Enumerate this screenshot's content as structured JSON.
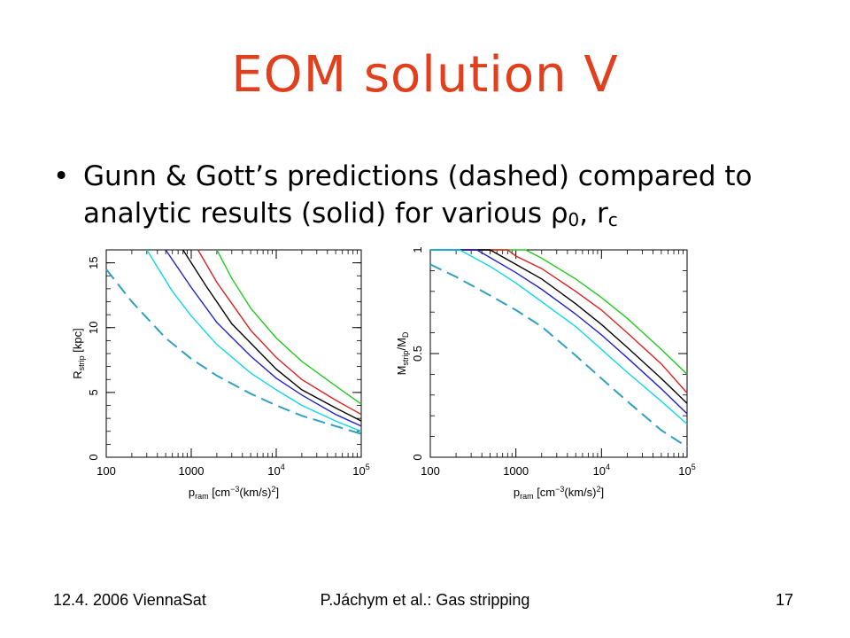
{
  "title": "EOM solution V",
  "bullet": {
    "text_main": "Gunn & Gott’s predictions (dashed) compared to analytic results (solid) for various ",
    "rho": "ρ",
    "rho_sub": "0",
    "separator": ", ",
    "r": "r",
    "r_sub": "c"
  },
  "footer": {
    "left": "12.4. 2006 ViennaSat",
    "center": "P.Jáchym et al.: Gas stripping",
    "right": "17"
  },
  "colors": {
    "title": "#e0401e",
    "green": "#22cc22",
    "red": "#e02020",
    "black": "#000000",
    "blue": "#2020d0",
    "cyan": "#10d8e8",
    "dashed": "#30a0c0"
  },
  "chart_data": [
    {
      "type": "line",
      "x_scale": "log",
      "xlim": [
        100,
        100000
      ],
      "ylim": [
        0,
        16
      ],
      "x_ticks": [
        {
          "value": 100,
          "label": "100"
        },
        {
          "value": 1000,
          "label": "1000"
        },
        {
          "value": 10000,
          "label": "10",
          "sup": "4"
        },
        {
          "value": 100000,
          "label": "10",
          "sup": "5"
        }
      ],
      "y_ticks": [
        {
          "value": 0,
          "label": "0"
        },
        {
          "value": 5,
          "label": "5"
        },
        {
          "value": 10,
          "label": "10"
        },
        {
          "value": 15,
          "label": "15"
        }
      ],
      "xlabel": {
        "main": "p",
        "sub": "ram",
        "unit_a": "[cm",
        "unit_sup1": "−3",
        "unit_b": "(km/s)",
        "unit_sup2": "2",
        "unit_c": "]"
      },
      "ylabel": {
        "main": "R",
        "sub": "strip",
        "unit": "[kpc]"
      },
      "series": [
        {
          "color": "green",
          "style": "solid",
          "x": [
            2000,
            3000,
            5000,
            10000,
            20000,
            50000,
            100000
          ],
          "y": [
            16,
            13.8,
            11.5,
            9.2,
            7.4,
            5.5,
            4.1
          ]
        },
        {
          "color": "red",
          "style": "solid",
          "x": [
            1200,
            2000,
            5000,
            10000,
            20000,
            50000,
            100000
          ],
          "y": [
            16,
            13.5,
            9.8,
            7.7,
            6.0,
            4.4,
            3.3
          ]
        },
        {
          "color": "black",
          "style": "solid",
          "x": [
            800,
            1500,
            3000,
            10000,
            20000,
            50000,
            100000
          ],
          "y": [
            16,
            13.2,
            10.3,
            6.8,
            5.2,
            3.8,
            2.8
          ]
        },
        {
          "color": "blue",
          "style": "solid",
          "x": [
            500,
            1000,
            2000,
            5000,
            10000,
            20000,
            50000,
            100000
          ],
          "y": [
            16,
            13.1,
            10.4,
            7.8,
            6.1,
            4.8,
            3.3,
            2.4
          ]
        },
        {
          "color": "cyan",
          "style": "solid",
          "x": [
            300,
            600,
            1000,
            2000,
            5000,
            10000,
            20000,
            50000,
            100000
          ],
          "y": [
            16,
            12.8,
            10.9,
            8.7,
            6.5,
            5.2,
            4.0,
            2.8,
            2.0
          ]
        },
        {
          "color": "dashed",
          "style": "dashed",
          "x": [
            100,
            200,
            500,
            1000,
            2000,
            5000,
            10000,
            20000,
            50000,
            100000
          ],
          "y": [
            14.5,
            12.0,
            9.2,
            7.6,
            6.3,
            4.9,
            4.0,
            3.2,
            2.4,
            1.8
          ]
        }
      ]
    },
    {
      "type": "line",
      "x_scale": "log",
      "xlim": [
        100,
        100000
      ],
      "ylim": [
        0,
        1
      ],
      "x_ticks": [
        {
          "value": 100,
          "label": "100"
        },
        {
          "value": 1000,
          "label": "1000"
        },
        {
          "value": 10000,
          "label": "10",
          "sup": "4"
        },
        {
          "value": 100000,
          "label": "10",
          "sup": "5"
        }
      ],
      "y_ticks": [
        {
          "value": 0,
          "label": "0"
        },
        {
          "value": 0.5,
          "label": "0.5"
        },
        {
          "value": 1,
          "label": "1"
        }
      ],
      "xlabel": {
        "main": "p",
        "sub": "ram",
        "unit_a": "[cm",
        "unit_sup1": "−3",
        "unit_b": "(km/s)",
        "unit_sup2": "2",
        "unit_c": "]"
      },
      "ylabel": {
        "main": "M",
        "sub": "strip",
        "slash": "/M",
        "sub2": "D"
      },
      "series": [
        {
          "color": "green",
          "style": "solid",
          "x": [
            100,
            1300,
            2000,
            5000,
            10000,
            20000,
            50000,
            100000
          ],
          "y": [
            1.0,
            1.0,
            0.96,
            0.86,
            0.77,
            0.67,
            0.52,
            0.4
          ]
        },
        {
          "color": "red",
          "style": "solid",
          "x": [
            100,
            800,
            1000,
            2000,
            5000,
            10000,
            20000,
            50000,
            100000
          ],
          "y": [
            1.0,
            1.0,
            0.97,
            0.91,
            0.8,
            0.71,
            0.6,
            0.45,
            0.31
          ]
        },
        {
          "color": "black",
          "style": "solid",
          "x": [
            100,
            500,
            1000,
            2000,
            5000,
            10000,
            20000,
            50000,
            100000
          ],
          "y": [
            1.0,
            1.0,
            0.93,
            0.86,
            0.74,
            0.64,
            0.53,
            0.38,
            0.26
          ]
        },
        {
          "color": "blue",
          "style": "solid",
          "x": [
            100,
            350,
            1000,
            2000,
            5000,
            10000,
            20000,
            50000,
            100000
          ],
          "y": [
            1.0,
            1.0,
            0.89,
            0.81,
            0.69,
            0.59,
            0.48,
            0.33,
            0.21
          ]
        },
        {
          "color": "cyan",
          "style": "solid",
          "x": [
            100,
            220,
            500,
            1000,
            2000,
            5000,
            10000,
            20000,
            50000,
            100000
          ],
          "y": [
            1.0,
            1.0,
            0.92,
            0.84,
            0.75,
            0.63,
            0.52,
            0.41,
            0.27,
            0.16
          ]
        },
        {
          "color": "dashed",
          "style": "dashed",
          "x": [
            100,
            200,
            500,
            1000,
            2000,
            5000,
            10000,
            20000,
            50000,
            100000
          ],
          "y": [
            0.93,
            0.87,
            0.78,
            0.71,
            0.63,
            0.49,
            0.38,
            0.27,
            0.13,
            0.05
          ]
        }
      ]
    }
  ]
}
